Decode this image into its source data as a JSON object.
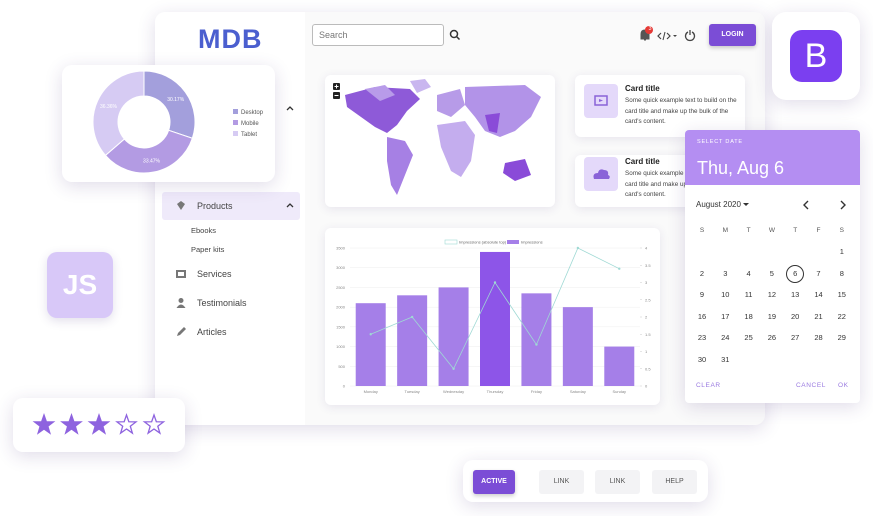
{
  "logo": "MDB",
  "search_placeholder": "Search",
  "notification_count": "3",
  "login": "LOGIN",
  "sidebar": [
    {
      "label": "Products",
      "children": [
        "Ebooks",
        "Paper kits"
      ]
    },
    {
      "label": "Services"
    },
    {
      "label": "Testimonials"
    },
    {
      "label": "Articles"
    }
  ],
  "cards": [
    {
      "title": "Card title",
      "text": "Some quick example text to build on the card title and make up the bulk of the card's content."
    },
    {
      "title": "Card title",
      "text": "Some quick example text to build on the card title and make up the bulk of the card's content."
    }
  ],
  "chart_data": [
    {
      "type": "pie",
      "categories": [
        "Desktop",
        "Mobile",
        "Tablet"
      ],
      "values": [
        30.17,
        33.47,
        36.36
      ],
      "value_labels": [
        "30.17%",
        "33.47%",
        "36.36%"
      ],
      "colors": [
        "#a39fdc",
        "#b39be3",
        "#d6cbf3"
      ]
    },
    {
      "type": "bar",
      "categories": [
        "Monday",
        "Tuesday",
        "Wednesday",
        "Thursday",
        "Friday",
        "Saturday",
        "Sunday"
      ],
      "series": [
        {
          "name": "Impressions (absolute top) %",
          "type": "line",
          "axis": "y2",
          "color": "#9fd9d4",
          "values": [
            1.5,
            2.0,
            0.5,
            3.0,
            1.2,
            4.0,
            3.4
          ]
        },
        {
          "name": "Impressions",
          "type": "bar",
          "color": "#a57fe8",
          "values": [
            2100,
            2300,
            2500,
            3400,
            2350,
            2000,
            1000
          ]
        }
      ],
      "ylim": [
        0,
        3500
      ],
      "yticks": [
        0,
        500,
        1000,
        1500,
        2000,
        2500,
        3000,
        3500
      ],
      "y2lim": [
        0,
        4
      ],
      "y2ticks": [
        0,
        0.5,
        1,
        1.5,
        2,
        2.5,
        3,
        3.5,
        4
      ]
    }
  ],
  "calendar": {
    "label": "SELECT DATE",
    "selected": "Thu, Aug 6",
    "month": "August 2020",
    "weekdays": [
      "S",
      "M",
      "T",
      "W",
      "T",
      "F",
      "S"
    ],
    "days": [
      "1",
      "2",
      "3",
      "4",
      "5",
      "6",
      "7",
      "8",
      "9",
      "10",
      "11",
      "12",
      "13",
      "14",
      "15",
      "16",
      "17",
      "18",
      "19",
      "20",
      "21",
      "22",
      "23",
      "24",
      "25",
      "26",
      "27",
      "28",
      "29",
      "30",
      "31"
    ],
    "actions": [
      "CLEAR",
      "CANCEL",
      "OK"
    ]
  },
  "badges": {
    "js": "JS",
    "bootstrap": "B"
  },
  "rating": {
    "value": 3,
    "max": 5
  },
  "buttons": [
    "ACTIVE",
    "LINK",
    "LINK",
    "HELP"
  ]
}
